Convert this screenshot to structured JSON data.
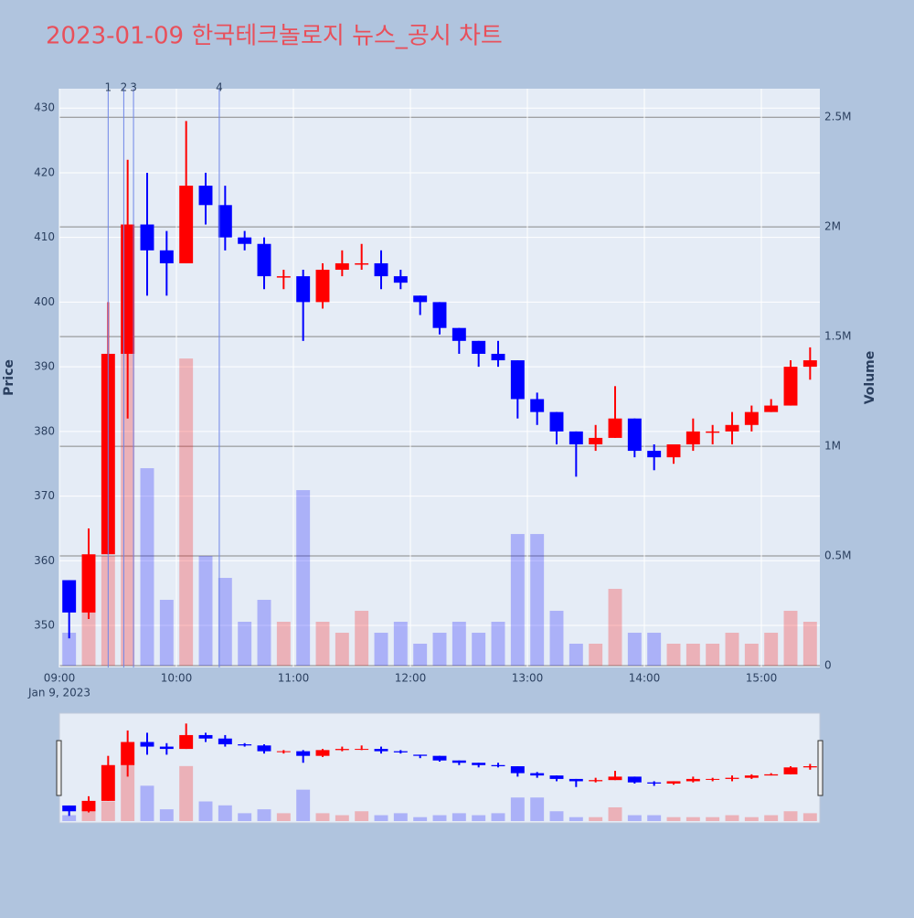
{
  "chart_data": {
    "type": "candlestick",
    "title": "2023-01-09 한국테크놀로지 뉴스_공시 차트",
    "y_label": "Price",
    "y2_label": "Volume",
    "x_date_label": "Jan 9, 2023",
    "increasing_color": "#ff0000",
    "decreasing_color": "#0000ff",
    "x": [
      "2023-01-09 09:00",
      "2023-01-09 09:10",
      "2023-01-09 09:20",
      "2023-01-09 09:30",
      "2023-01-09 09:40",
      "2023-01-09 09:50",
      "2023-01-09 10:00",
      "2023-01-09 10:10",
      "2023-01-09 10:20",
      "2023-01-09 10:30",
      "2023-01-09 10:40",
      "2023-01-09 10:50",
      "2023-01-09 11:00",
      "2023-01-09 11:10",
      "2023-01-09 11:20",
      "2023-01-09 11:30",
      "2023-01-09 11:40",
      "2023-01-09 11:50",
      "2023-01-09 12:00",
      "2023-01-09 12:10",
      "2023-01-09 12:20",
      "2023-01-09 12:30",
      "2023-01-09 12:40",
      "2023-01-09 12:50",
      "2023-01-09 13:00",
      "2023-01-09 13:10",
      "2023-01-09 13:20",
      "2023-01-09 13:30",
      "2023-01-09 13:40",
      "2023-01-09 13:50",
      "2023-01-09 14:00",
      "2023-01-09 14:10",
      "2023-01-09 14:20",
      "2023-01-09 14:30",
      "2023-01-09 14:40",
      "2023-01-09 14:50",
      "2023-01-09 15:00",
      "2023-01-09 15:10",
      "2023-01-09 15:20"
    ],
    "open": [
      357,
      352,
      361,
      392,
      412,
      408,
      406,
      418,
      415,
      410,
      409,
      404,
      404,
      400,
      405,
      406,
      406,
      404,
      401,
      400,
      396,
      394,
      392,
      391,
      385,
      383,
      380,
      378,
      379,
      382,
      377,
      376,
      378,
      380,
      380,
      381,
      383,
      384,
      390
    ],
    "high": [
      357,
      365,
      400,
      422,
      420,
      411,
      428,
      420,
      418,
      411,
      410,
      405,
      405,
      406,
      408,
      409,
      408,
      405,
      401,
      400,
      396,
      394,
      394,
      391,
      386,
      383,
      380,
      381,
      387,
      382,
      378,
      378,
      382,
      381,
      383,
      384,
      385,
      391,
      393
    ],
    "low": [
      348,
      351,
      361,
      382,
      401,
      401,
      406,
      412,
      408,
      408,
      402,
      402,
      394,
      399,
      404,
      405,
      402,
      402,
      398,
      395,
      392,
      390,
      390,
      382,
      381,
      378,
      373,
      377,
      379,
      376,
      374,
      375,
      377,
      378,
      378,
      380,
      383,
      384,
      388
    ],
    "close": [
      352,
      361,
      392,
      412,
      408,
      406,
      418,
      415,
      410,
      409,
      404,
      404,
      400,
      405,
      406,
      406,
      404,
      403,
      400,
      396,
      394,
      392,
      391,
      385,
      383,
      380,
      378,
      379,
      382,
      377,
      376,
      378,
      380,
      380,
      381,
      383,
      384,
      390,
      391
    ],
    "volume": [
      150000,
      300000,
      500000,
      1500000,
      900000,
      300000,
      1400000,
      500000,
      400000,
      200000,
      300000,
      200000,
      800000,
      200000,
      150000,
      250000,
      150000,
      200000,
      100000,
      150000,
      200000,
      150000,
      200000,
      600000,
      600000,
      250000,
      100000,
      100000,
      350000,
      150000,
      150000,
      100000,
      100000,
      100000,
      150000,
      100000,
      150000,
      250000,
      200000
    ],
    "xlim": [
      "2023-01-09 09:00",
      "2023-01-09 15:30"
    ],
    "xticks": [
      {
        "value": "2023-01-09 09:00",
        "label": "09:00"
      },
      {
        "value": "2023-01-09 10:00",
        "label": "10:00"
      },
      {
        "value": "2023-01-09 11:00",
        "label": "11:00"
      },
      {
        "value": "2023-01-09 12:00",
        "label": "12:00"
      },
      {
        "value": "2023-01-09 13:00",
        "label": "13:00"
      },
      {
        "value": "2023-01-09 14:00",
        "label": "14:00"
      },
      {
        "value": "2023-01-09 15:00",
        "label": "15:00"
      }
    ],
    "ylim": [
      343.5,
      433
    ],
    "yticks": [
      350,
      360,
      370,
      380,
      390,
      400,
      410,
      420,
      430
    ],
    "y2lim": [
      0,
      2630000
    ],
    "y2ticks": [
      0,
      {
        "value": 500000,
        "label": "0.5M"
      },
      {
        "value": 1000000,
        "label": "1M"
      },
      {
        "value": 1500000,
        "label": "1.5M"
      },
      {
        "value": 2000000,
        "label": "2M"
      },
      {
        "value": 2500000,
        "label": "2.5M"
      }
    ],
    "annotations": [
      {
        "x": "2023-01-09 09:25",
        "text": "1"
      },
      {
        "x": "2023-01-09 09:33",
        "text": "2"
      },
      {
        "x": "2023-01-09 09:38",
        "text": "3"
      },
      {
        "x": "2023-01-09 10:22",
        "text": "4"
      }
    ],
    "grid": true
  }
}
